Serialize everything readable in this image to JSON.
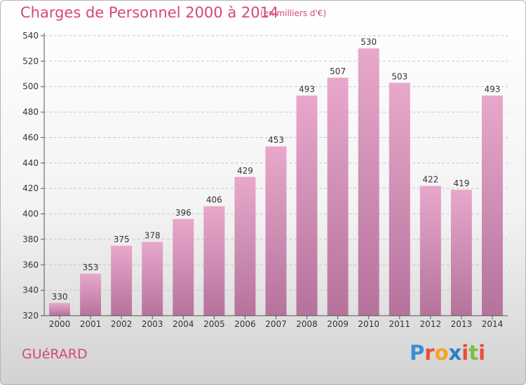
{
  "header": {
    "title": "Charges de Personnel 2000 à 2014",
    "subtitle": "(en milliers d'€)"
  },
  "footer": {
    "place": "GUéRARD",
    "brand_letters": [
      "P",
      "r",
      "o",
      "x",
      "i",
      "t",
      "i"
    ],
    "brand_colors": [
      "#3a8fd6",
      "#e94e3c",
      "#f2a81d",
      "#2c7fc9",
      "#e94e3c",
      "#7ac143",
      "#e94e3c"
    ]
  },
  "chart_data": {
    "type": "bar",
    "categories": [
      "2000",
      "2001",
      "2002",
      "2003",
      "2004",
      "2005",
      "2006",
      "2007",
      "2008",
      "2009",
      "2010",
      "2011",
      "2012",
      "2013",
      "2014"
    ],
    "values": [
      330,
      353,
      375,
      378,
      396,
      406,
      429,
      453,
      493,
      507,
      530,
      503,
      422,
      419,
      493
    ],
    "ylim": [
      320,
      540
    ],
    "yticks": [
      "320",
      "340",
      "360",
      "380",
      "400",
      "420",
      "440",
      "460",
      "480",
      "500",
      "520",
      "540"
    ],
    "grid": true,
    "bar_color_top": "#e8a8cb",
    "bar_color_bottom": "#b5739c"
  }
}
